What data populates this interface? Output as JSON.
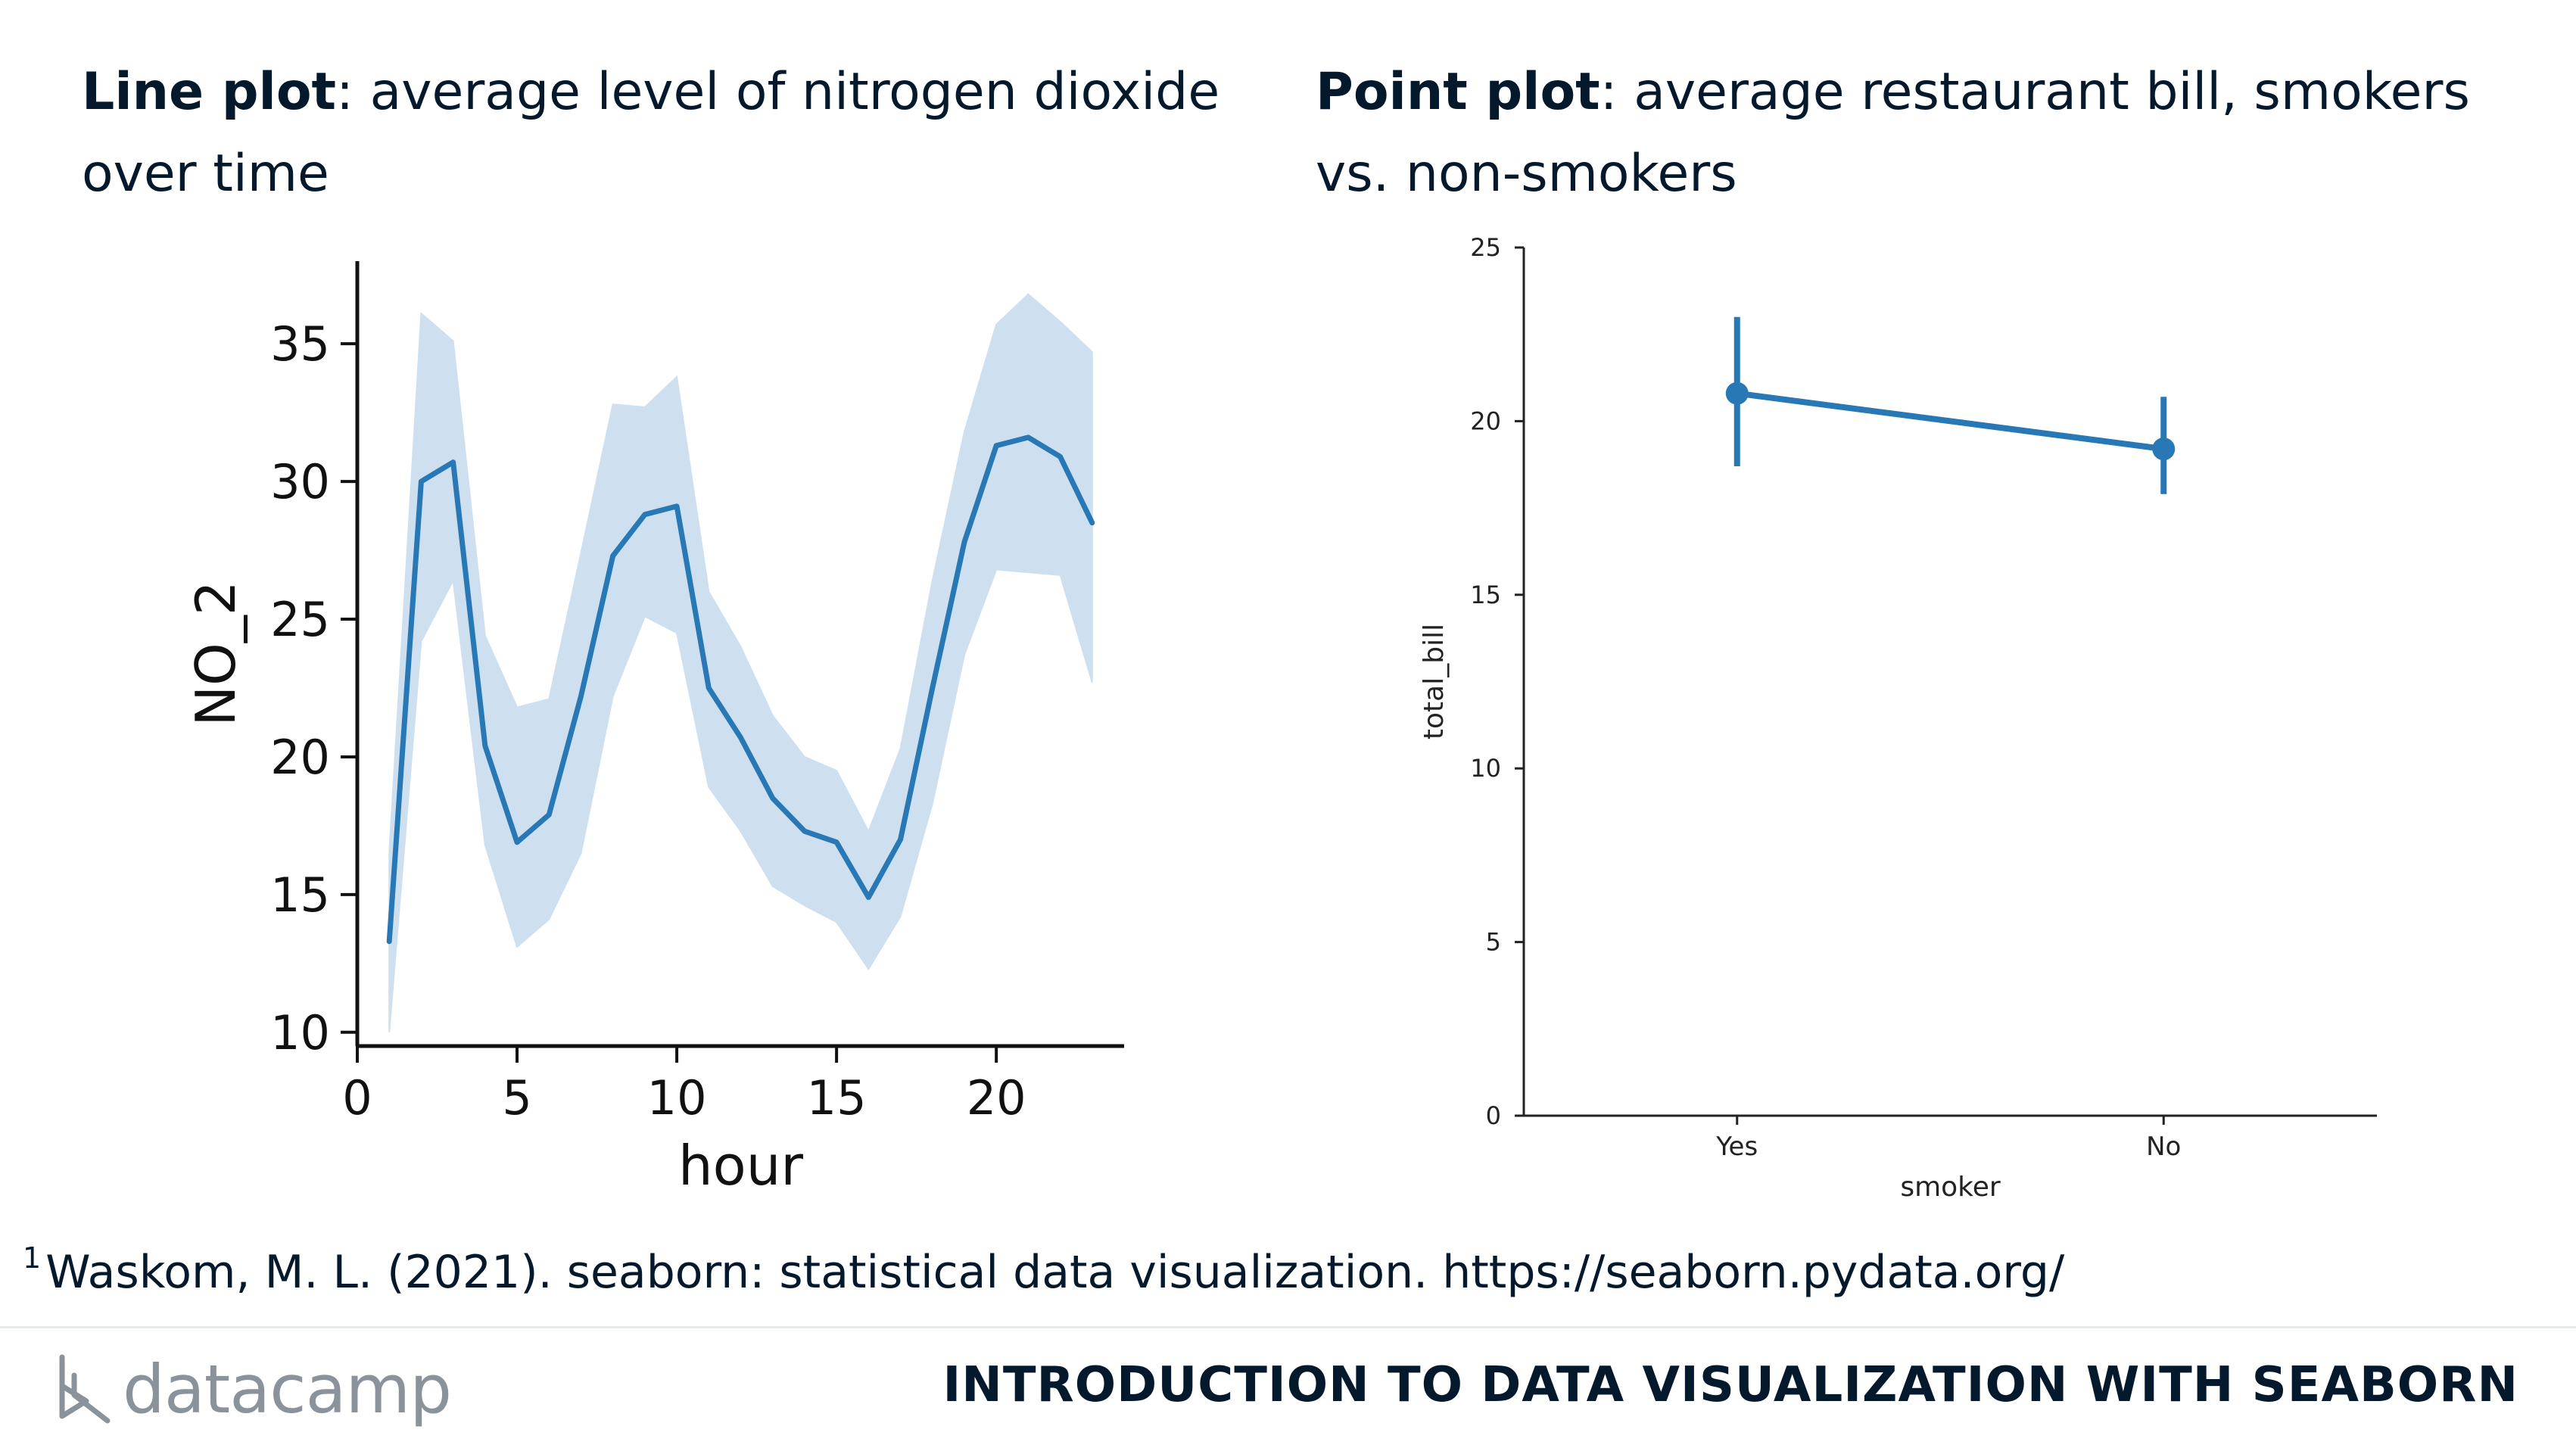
{
  "left_caption": {
    "bold": "Line plot",
    "text": ": average level of nitrogen dioxide over time"
  },
  "right_caption": {
    "bold": "Point plot",
    "text": ": average restaurant bill, smokers vs. non-smokers"
  },
  "footnote": {
    "marker": "1",
    "text": "Waskom, M. L. (2021). seaborn: statistical data visualization. https://seaborn.pydata.org/"
  },
  "brand": {
    "name": "datacamp",
    "logo_icon": "datacamp-logo-icon"
  },
  "course_title": "INTRODUCTION TO DATA VISUALIZATION WITH SEABORN",
  "colors": {
    "line": "#2878b5",
    "band": "#c6dbed",
    "text": "#05192d",
    "muted": "#8a939c"
  },
  "chart_data": [
    {
      "type": "line",
      "xlabel": "hour",
      "ylabel": "NO_2",
      "xlim": [
        0,
        24
      ],
      "ylim": [
        9.5,
        38
      ],
      "xticks": [
        0,
        5,
        10,
        15,
        20
      ],
      "yticks": [
        10,
        15,
        20,
        25,
        30,
        35
      ],
      "series": [
        {
          "x": [
            1,
            2,
            3,
            4,
            5,
            6,
            7,
            8,
            9,
            10,
            11,
            12,
            13,
            14,
            15,
            16,
            17,
            18,
            19,
            20,
            21,
            22,
            23
          ],
          "y": [
            13.3,
            30.0,
            30.7,
            20.4,
            16.9,
            17.9,
            22.2,
            27.3,
            28.8,
            29.1,
            22.5,
            20.7,
            18.5,
            17.3,
            16.9,
            14.9,
            17.0,
            22.5,
            27.8,
            31.3,
            31.6,
            30.9,
            28.5
          ],
          "ci_low": [
            10.0,
            24.2,
            26.4,
            16.8,
            13.1,
            14.1,
            16.5,
            22.2,
            25.1,
            24.5,
            18.9,
            17.3,
            15.3,
            14.6,
            14.0,
            12.3,
            14.2,
            18.3,
            23.7,
            26.8,
            26.7,
            26.6,
            22.7
          ],
          "ci_high": [
            16.5,
            36.1,
            35.1,
            24.4,
            21.8,
            22.1,
            27.4,
            32.8,
            32.7,
            33.8,
            26.0,
            24.0,
            21.5,
            20.0,
            19.5,
            17.3,
            20.3,
            26.4,
            31.8,
            35.7,
            36.8,
            35.8,
            34.7
          ]
        }
      ]
    },
    {
      "type": "scatter",
      "xlabel": "smoker",
      "ylabel": "total_bill",
      "categories": [
        "Yes",
        "No"
      ],
      "ylim": [
        0,
        25
      ],
      "yticks": [
        0,
        5,
        10,
        15,
        20,
        25
      ],
      "values": [
        20.8,
        19.2
      ],
      "ci_low": [
        18.7,
        17.9
      ],
      "ci_high": [
        23.0,
        20.7
      ]
    }
  ]
}
